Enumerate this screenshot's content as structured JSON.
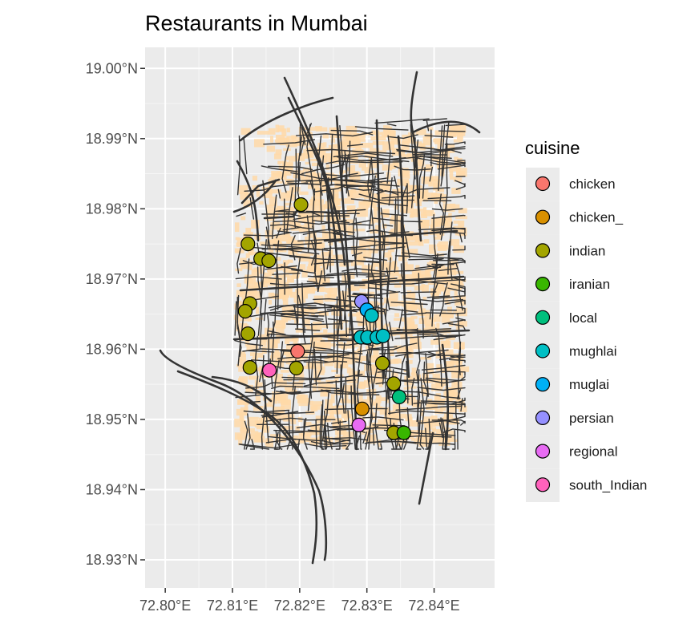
{
  "chart_data": {
    "type": "scatter",
    "title": "Restaurants in Mumbai",
    "xlabel": "",
    "ylabel": "",
    "xlim": [
      72.797,
      72.849
    ],
    "ylim": [
      18.926,
      19.003
    ],
    "x_ticks": [
      72.8,
      72.81,
      72.82,
      72.83,
      72.84
    ],
    "x_tick_labels": [
      "72.80°E",
      "72.81°E",
      "72.82°E",
      "72.83°E",
      "72.84°E"
    ],
    "y_ticks": [
      19.0,
      18.99,
      18.98,
      18.97,
      18.96,
      18.95,
      18.94,
      18.93
    ],
    "y_tick_labels": [
      "19.00°N",
      "18.99°N",
      "18.98°N",
      "18.97°N",
      "18.96°N",
      "18.95°N",
      "18.94°N",
      "18.93°N"
    ],
    "grid": true,
    "background": "#ebebeb",
    "basemap": {
      "road_color": "#333333",
      "building_color": "#ffd9a8"
    },
    "legend": {
      "title": "cuisine",
      "position": "right",
      "entries": [
        {
          "name": "chicken",
          "color": "#f8766d"
        },
        {
          "name": "chicken_",
          "color": "#d89000"
        },
        {
          "name": "indian",
          "color": "#a3a500"
        },
        {
          "name": "iranian",
          "color": "#39b600"
        },
        {
          "name": "local",
          "color": "#00bf7d"
        },
        {
          "name": "mughlai",
          "color": "#00bfc4"
        },
        {
          "name": "muglai",
          "color": "#00b0f6"
        },
        {
          "name": "persian",
          "color": "#9590ff"
        },
        {
          "name": "regional",
          "color": "#e76bf3"
        },
        {
          "name": "south_Indian",
          "color": "#ff62bc"
        }
      ]
    },
    "points": [
      {
        "lon": 72.8202,
        "lat": 18.9806,
        "cuisine": "indian"
      },
      {
        "lon": 72.8123,
        "lat": 18.975,
        "cuisine": "indian"
      },
      {
        "lon": 72.8142,
        "lat": 18.9729,
        "cuisine": "indian"
      },
      {
        "lon": 72.8154,
        "lat": 18.9726,
        "cuisine": "indian"
      },
      {
        "lon": 72.8126,
        "lat": 18.9665,
        "cuisine": "indian"
      },
      {
        "lon": 72.8119,
        "lat": 18.9654,
        "cuisine": "indian"
      },
      {
        "lon": 72.8123,
        "lat": 18.9622,
        "cuisine": "indian"
      },
      {
        "lon": 72.8126,
        "lat": 18.9574,
        "cuisine": "indian"
      },
      {
        "lon": 72.8195,
        "lat": 18.9573,
        "cuisine": "indian"
      },
      {
        "lon": 72.8323,
        "lat": 18.958,
        "cuisine": "indian"
      },
      {
        "lon": 72.834,
        "lat": 18.9551,
        "cuisine": "indian"
      },
      {
        "lon": 72.834,
        "lat": 18.9481,
        "cuisine": "indian"
      },
      {
        "lon": 72.8155,
        "lat": 18.957,
        "cuisine": "south_Indian"
      },
      {
        "lon": 72.8197,
        "lat": 18.9597,
        "cuisine": "chicken"
      },
      {
        "lon": 72.8293,
        "lat": 18.9515,
        "cuisine": "chicken_"
      },
      {
        "lon": 72.8355,
        "lat": 18.9481,
        "cuisine": "iranian"
      },
      {
        "lon": 72.8348,
        "lat": 18.9532,
        "cuisine": "local"
      },
      {
        "lon": 72.8292,
        "lat": 18.9668,
        "cuisine": "persian"
      },
      {
        "lon": 72.83,
        "lat": 18.9656,
        "cuisine": "muglai"
      },
      {
        "lon": 72.8307,
        "lat": 18.9648,
        "cuisine": "mughlai"
      },
      {
        "lon": 72.8291,
        "lat": 18.9617,
        "cuisine": "mughlai"
      },
      {
        "lon": 72.8301,
        "lat": 18.9617,
        "cuisine": "mughlai"
      },
      {
        "lon": 72.8315,
        "lat": 18.9617,
        "cuisine": "mughlai"
      },
      {
        "lon": 72.8324,
        "lat": 18.9619,
        "cuisine": "mughlai"
      },
      {
        "lon": 72.8288,
        "lat": 18.9492,
        "cuisine": "regional"
      }
    ]
  }
}
